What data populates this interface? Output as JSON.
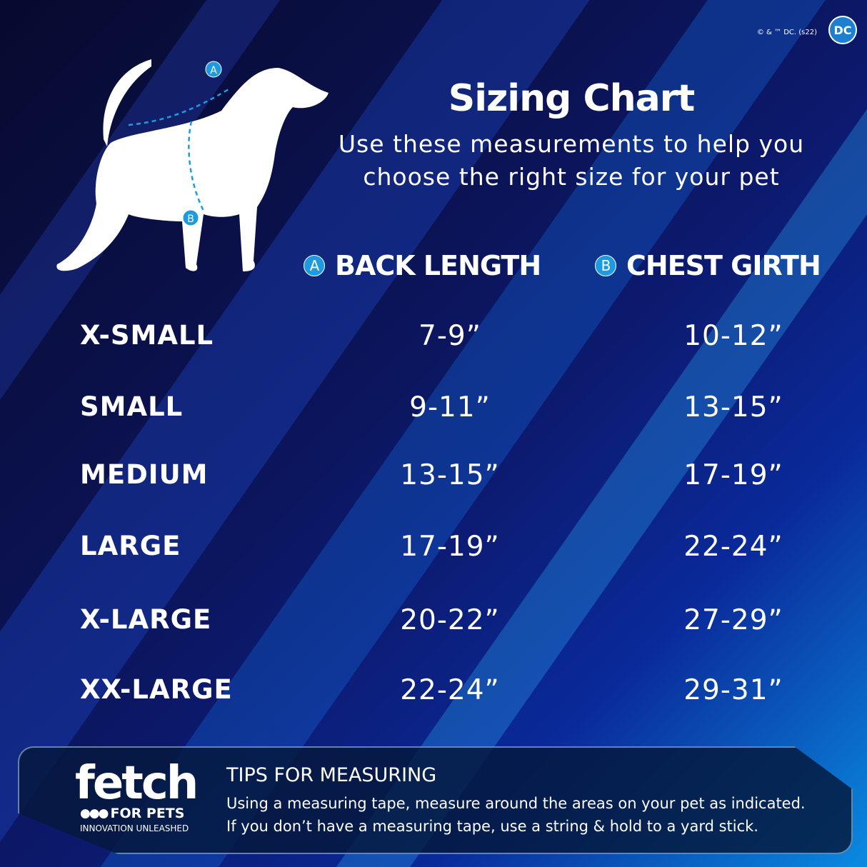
{
  "copyright": "© & ™ DC. (s22)",
  "dc_logo": "DC",
  "title": "Sizing Chart",
  "subtitle": [
    "Use these measurements to help you",
    "choose the right size for your pet"
  ],
  "diagram_labels": {
    "a": "A",
    "b": "B"
  },
  "headers": {
    "back": {
      "badge": "A",
      "label": "BACK LENGTH"
    },
    "chest": {
      "badge": "B",
      "label": "CHEST GIRTH"
    }
  },
  "rows": [
    {
      "size": "X-SMALL",
      "back": "7-9”",
      "chest": "10-12”"
    },
    {
      "size": "SMALL",
      "back": "9-11”",
      "chest": "13-15”"
    },
    {
      "size": "MEDIUM",
      "back": "13-15”",
      "chest": "17-19”"
    },
    {
      "size": "LARGE",
      "back": "17-19”",
      "chest": "22-24”"
    },
    {
      "size": "X-LARGE",
      "back": "20-22”",
      "chest": "27-29”"
    },
    {
      "size": "XX-LARGE",
      "back": "22-24”",
      "chest": "29-31”"
    }
  ],
  "brand": {
    "name": "fetch",
    "line2": "FOR PETS",
    "tagline": "INNOVATION UNLEASHED"
  },
  "tips": {
    "title": "TIPS FOR MEASURING",
    "lines": [
      "Using a measuring tape, measure around the areas on your pet as indicated.",
      "If you don’t have a measuring tape, use a string & hold to a yard stick."
    ]
  },
  "colors": {
    "accent": "#1e9be0",
    "background": "#0b1250"
  }
}
